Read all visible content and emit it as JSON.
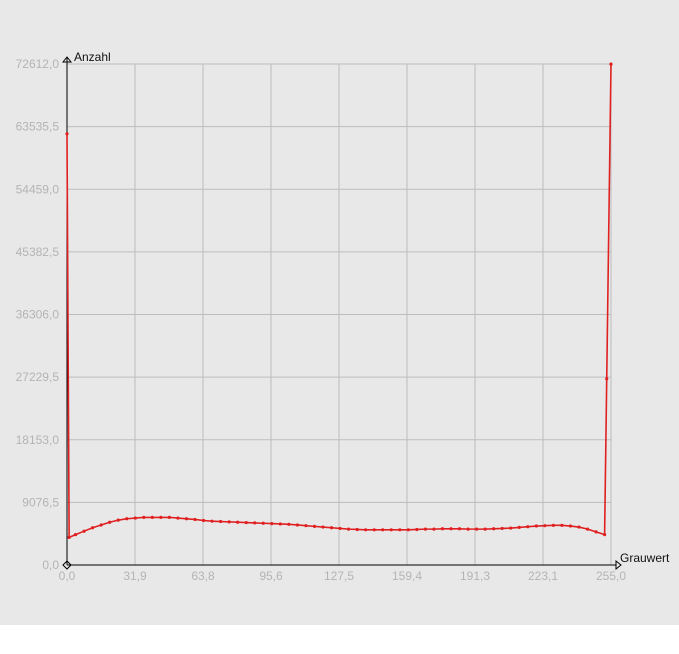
{
  "chart_data": {
    "type": "line",
    "xlabel": "Grauwert",
    "ylabel": "Anzahl",
    "xlim": [
      0,
      255
    ],
    "ylim": [
      0,
      72612
    ],
    "x_ticks": [
      0,
      31.875,
      63.75,
      95.625,
      127.5,
      159.375,
      191.25,
      223.125,
      255
    ],
    "x_tick_labels": [
      "0,0",
      "31,9",
      "63,8",
      "95,6",
      "127,5",
      "159,4",
      "191,3",
      "223,1",
      "255,0"
    ],
    "y_ticks": [
      0,
      9076.5,
      18153,
      27229.5,
      36306,
      45382.5,
      54459,
      63535.5,
      72612
    ],
    "y_tick_labels": [
      "0,0",
      "9076,5",
      "18153,0",
      "27229,5",
      "36306,0",
      "45382,5",
      "54459,0",
      "63535,5",
      "72612,0"
    ],
    "grid": true,
    "series_color": "#e02020",
    "series": [
      {
        "x": [
          0,
          1,
          4,
          8,
          12,
          16,
          20,
          24,
          28,
          32,
          36,
          40,
          44,
          48,
          52,
          56,
          60,
          64,
          68,
          72,
          76,
          80,
          84,
          88,
          92,
          96,
          100,
          104,
          108,
          112,
          116,
          120,
          124,
          128,
          132,
          136,
          140,
          144,
          148,
          152,
          156,
          160,
          164,
          168,
          172,
          176,
          180,
          184,
          188,
          192,
          196,
          200,
          204,
          208,
          212,
          216,
          220,
          224,
          228,
          232,
          236,
          240,
          244,
          248,
          252,
          253,
          255
        ],
        "y": [
          62500,
          4000,
          4400,
          4900,
          5400,
          5800,
          6200,
          6500,
          6700,
          6800,
          6900,
          6900,
          6900,
          6900,
          6800,
          6700,
          6600,
          6450,
          6350,
          6300,
          6250,
          6200,
          6150,
          6100,
          6050,
          6000,
          5950,
          5900,
          5800,
          5700,
          5600,
          5500,
          5400,
          5300,
          5200,
          5150,
          5100,
          5100,
          5100,
          5100,
          5100,
          5100,
          5150,
          5200,
          5200,
          5250,
          5250,
          5250,
          5200,
          5200,
          5200,
          5250,
          5300,
          5350,
          5450,
          5550,
          5650,
          5700,
          5750,
          5750,
          5650,
          5500,
          5200,
          4800,
          4400,
          27000,
          72600
        ]
      }
    ]
  }
}
